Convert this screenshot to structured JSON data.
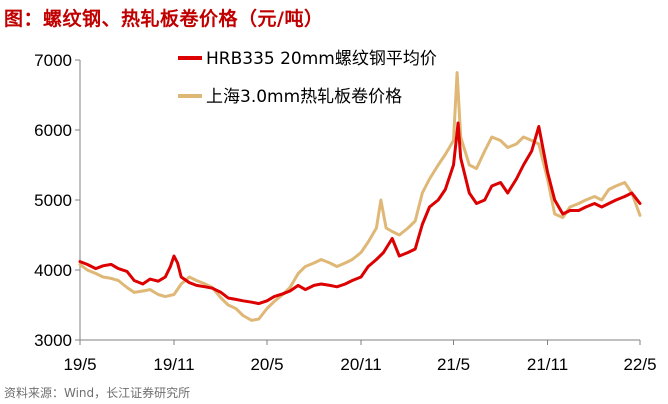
{
  "header": {
    "title": "图：螺纹钢、热轧板卷价格（元/吨）"
  },
  "footer": {
    "source": "资料来源：Wind，长江证券研究所"
  },
  "colors": {
    "series_0": "#dc0000",
    "series_1": "#dfb877",
    "axis": "#808080",
    "title": "#c00000"
  },
  "chart_data": {
    "type": "line",
    "title": "图：螺纹钢、热轧板卷价格（元/吨）",
    "xlabel": "",
    "ylabel": "",
    "ylim": [
      3000,
      7000
    ],
    "yticks": [
      3000,
      4000,
      5000,
      6000,
      7000
    ],
    "ytick_labels": [
      "3000",
      "4000",
      "5000",
      "6000",
      "7000"
    ],
    "xlim": [
      "2019-05",
      "2022-05"
    ],
    "xticks": [
      "2019-05",
      "2019-11",
      "2020-05",
      "2020-11",
      "2021-05",
      "2021-11",
      "2022-05"
    ],
    "xtick_labels": [
      "19/5",
      "19/11",
      "20/5",
      "20/11",
      "21/5",
      "21/11",
      "22/5"
    ],
    "grid": false,
    "legend": "top-center",
    "series": [
      {
        "name": "HRB335 20mm螺纹钢平均价",
        "color": "#dc0000",
        "points": [
          [
            "2019-05-01",
            4120
          ],
          [
            "2019-05-15",
            4080
          ],
          [
            "2019-06-01",
            4020
          ],
          [
            "2019-06-15",
            4060
          ],
          [
            "2019-07-01",
            4080
          ],
          [
            "2019-07-15",
            4020
          ],
          [
            "2019-08-01",
            3980
          ],
          [
            "2019-08-15",
            3850
          ],
          [
            "2019-09-01",
            3800
          ],
          [
            "2019-09-15",
            3870
          ],
          [
            "2019-10-01",
            3840
          ],
          [
            "2019-10-15",
            3900
          ],
          [
            "2019-10-25",
            4050
          ],
          [
            "2019-11-01",
            4200
          ],
          [
            "2019-11-08",
            4100
          ],
          [
            "2019-11-15",
            3900
          ],
          [
            "2019-12-01",
            3820
          ],
          [
            "2019-12-15",
            3780
          ],
          [
            "2020-01-01",
            3760
          ],
          [
            "2020-01-15",
            3740
          ],
          [
            "2020-02-01",
            3680
          ],
          [
            "2020-02-15",
            3600
          ],
          [
            "2020-03-01",
            3580
          ],
          [
            "2020-03-15",
            3560
          ],
          [
            "2020-04-01",
            3540
          ],
          [
            "2020-04-15",
            3520
          ],
          [
            "2020-05-01",
            3560
          ],
          [
            "2020-05-15",
            3620
          ],
          [
            "2020-06-01",
            3660
          ],
          [
            "2020-06-15",
            3700
          ],
          [
            "2020-07-01",
            3780
          ],
          [
            "2020-07-15",
            3720
          ],
          [
            "2020-08-01",
            3780
          ],
          [
            "2020-08-15",
            3800
          ],
          [
            "2020-09-01",
            3780
          ],
          [
            "2020-09-15",
            3760
          ],
          [
            "2020-10-01",
            3800
          ],
          [
            "2020-10-15",
            3850
          ],
          [
            "2020-11-01",
            3900
          ],
          [
            "2020-11-15",
            4050
          ],
          [
            "2020-12-01",
            4150
          ],
          [
            "2020-12-15",
            4250
          ],
          [
            "2021-01-01",
            4450
          ],
          [
            "2021-01-15",
            4200
          ],
          [
            "2021-02-01",
            4250
          ],
          [
            "2021-02-15",
            4300
          ],
          [
            "2021-03-01",
            4650
          ],
          [
            "2021-03-15",
            4900
          ],
          [
            "2021-04-01",
            5000
          ],
          [
            "2021-04-15",
            5150
          ],
          [
            "2021-05-01",
            5500
          ],
          [
            "2021-05-10",
            6100
          ],
          [
            "2021-05-15",
            5600
          ],
          [
            "2021-06-01",
            5100
          ],
          [
            "2021-06-15",
            4950
          ],
          [
            "2021-07-01",
            5000
          ],
          [
            "2021-07-15",
            5200
          ],
          [
            "2021-08-01",
            5250
          ],
          [
            "2021-08-15",
            5100
          ],
          [
            "2021-09-01",
            5300
          ],
          [
            "2021-09-15",
            5500
          ],
          [
            "2021-10-01",
            5700
          ],
          [
            "2021-10-15",
            6050
          ],
          [
            "2021-11-01",
            5400
          ],
          [
            "2021-11-15",
            5000
          ],
          [
            "2021-12-01",
            4800
          ],
          [
            "2021-12-15",
            4850
          ],
          [
            "2022-01-01",
            4850
          ],
          [
            "2022-01-15",
            4900
          ],
          [
            "2022-02-01",
            4950
          ],
          [
            "2022-02-15",
            4900
          ],
          [
            "2022-03-01",
            4950
          ],
          [
            "2022-03-15",
            5000
          ],
          [
            "2022-04-01",
            5050
          ],
          [
            "2022-04-15",
            5100
          ],
          [
            "2022-05-01",
            4950
          ]
        ]
      },
      {
        "name": "上海3.0mm热轧板卷价格",
        "color": "#dfb877",
        "points": [
          [
            "2019-05-01",
            4080
          ],
          [
            "2019-05-15",
            4000
          ],
          [
            "2019-06-01",
            3950
          ],
          [
            "2019-06-15",
            3900
          ],
          [
            "2019-07-01",
            3880
          ],
          [
            "2019-07-15",
            3850
          ],
          [
            "2019-08-01",
            3750
          ],
          [
            "2019-08-15",
            3680
          ],
          [
            "2019-09-01",
            3700
          ],
          [
            "2019-09-15",
            3720
          ],
          [
            "2019-10-01",
            3650
          ],
          [
            "2019-10-15",
            3620
          ],
          [
            "2019-11-01",
            3650
          ],
          [
            "2019-11-15",
            3800
          ],
          [
            "2019-12-01",
            3900
          ],
          [
            "2019-12-15",
            3850
          ],
          [
            "2020-01-01",
            3800
          ],
          [
            "2020-01-15",
            3750
          ],
          [
            "2020-02-01",
            3600
          ],
          [
            "2020-02-15",
            3500
          ],
          [
            "2020-03-01",
            3450
          ],
          [
            "2020-03-15",
            3350
          ],
          [
            "2020-04-01",
            3280
          ],
          [
            "2020-04-15",
            3300
          ],
          [
            "2020-05-01",
            3450
          ],
          [
            "2020-05-15",
            3550
          ],
          [
            "2020-06-01",
            3650
          ],
          [
            "2020-06-15",
            3750
          ],
          [
            "2020-07-01",
            3950
          ],
          [
            "2020-07-15",
            4050
          ],
          [
            "2020-08-01",
            4100
          ],
          [
            "2020-08-15",
            4150
          ],
          [
            "2020-09-01",
            4100
          ],
          [
            "2020-09-15",
            4050
          ],
          [
            "2020-10-01",
            4100
          ],
          [
            "2020-10-15",
            4150
          ],
          [
            "2020-11-01",
            4250
          ],
          [
            "2020-11-15",
            4400
          ],
          [
            "2020-12-01",
            4600
          ],
          [
            "2020-12-10",
            5000
          ],
          [
            "2020-12-20",
            4600
          ],
          [
            "2021-01-01",
            4550
          ],
          [
            "2021-01-15",
            4500
          ],
          [
            "2021-02-01",
            4600
          ],
          [
            "2021-02-15",
            4700
          ],
          [
            "2021-03-01",
            5100
          ],
          [
            "2021-03-15",
            5300
          ],
          [
            "2021-04-01",
            5500
          ],
          [
            "2021-04-15",
            5650
          ],
          [
            "2021-05-01",
            5850
          ],
          [
            "2021-05-08",
            6820
          ],
          [
            "2021-05-15",
            5900
          ],
          [
            "2021-06-01",
            5500
          ],
          [
            "2021-06-15",
            5450
          ],
          [
            "2021-07-01",
            5700
          ],
          [
            "2021-07-15",
            5900
          ],
          [
            "2021-08-01",
            5850
          ],
          [
            "2021-08-15",
            5750
          ],
          [
            "2021-09-01",
            5800
          ],
          [
            "2021-09-15",
            5900
          ],
          [
            "2021-10-01",
            5850
          ],
          [
            "2021-10-15",
            5800
          ],
          [
            "2021-11-01",
            5300
          ],
          [
            "2021-11-15",
            4800
          ],
          [
            "2021-12-01",
            4750
          ],
          [
            "2021-12-15",
            4900
          ],
          [
            "2022-01-01",
            4950
          ],
          [
            "2022-01-15",
            5000
          ],
          [
            "2022-02-01",
            5050
          ],
          [
            "2022-02-15",
            5000
          ],
          [
            "2022-03-01",
            5150
          ],
          [
            "2022-03-15",
            5200
          ],
          [
            "2022-04-01",
            5250
          ],
          [
            "2022-04-15",
            5100
          ],
          [
            "2022-05-01",
            4780
          ]
        ]
      }
    ]
  }
}
